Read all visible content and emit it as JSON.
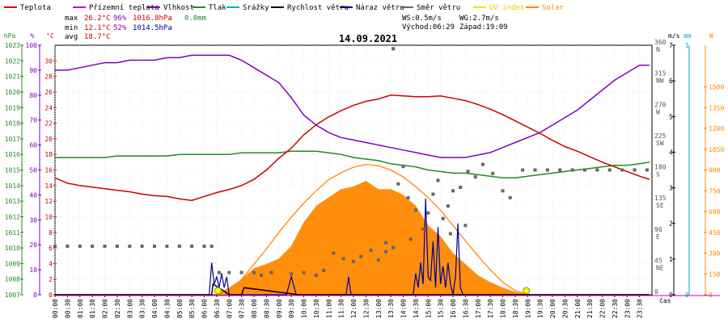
{
  "chart_data": {
    "type": "line",
    "title": "14.09.2021",
    "x": [
      "00:00",
      "00:30",
      "01:00",
      "01:30",
      "02:00",
      "02:30",
      "03:00",
      "03:30",
      "04:00",
      "04:30",
      "05:00",
      "05:30",
      "06:00",
      "06:30",
      "07:00",
      "07:30",
      "08:00",
      "08:30",
      "09:00",
      "09:30",
      "10:00",
      "10:30",
      "11:00",
      "11:30",
      "12:00",
      "12:30",
      "13:00",
      "13:30",
      "14:00",
      "14:30",
      "15:00",
      "15:30",
      "16:00",
      "16:30",
      "17:00",
      "17:30",
      "18:00",
      "18:30",
      "19:00",
      "19:30",
      "20:00",
      "20:30",
      "21:00",
      "21:30",
      "22:00",
      "22:30",
      "23:00",
      "23:30"
    ],
    "xlabel": "čas",
    "legend": [
      {
        "name": "Teplota",
        "color": "#cc0000"
      },
      {
        "name": "Přízemní teplota",
        "color": "#cc00cc"
      },
      {
        "name": "Vlhkost",
        "color": "#8000c0"
      },
      {
        "name": "Tlak",
        "color": "#228b22"
      },
      {
        "name": "Srážky",
        "color": "#00aacc"
      },
      {
        "name": "Rychlost větru",
        "color": "#000000"
      },
      {
        "name": "Náraz větru",
        "color": "#000099"
      },
      {
        "name": "Směr větru",
        "color": "#666666"
      },
      {
        "name": "UV index",
        "color": "#e8e800"
      },
      {
        "name": "Solar",
        "color": "#ff8800"
      }
    ],
    "stats": {
      "max_label": "max",
      "max_temp": "26.2°C",
      "max_hum": "96%",
      "max_press": "1016.8hPa",
      "max_rain": "0.0mm",
      "min_label": "min",
      "min_temp": "12.1°C",
      "min_hum": "52%",
      "min_press": "1014.5hPa",
      "avg_label": "avg",
      "avg_temp": "18.7°C",
      "ws": "WS:0.5m/s",
      "wg": "WG:2.7m/s",
      "sunrise": "Východ:06:29",
      "sunset": "Západ:19:09"
    },
    "axes": {
      "pressure": {
        "unit": "hPa",
        "color": "#228b22",
        "range": [
          1007,
          1023
        ],
        "ticks": [
          1007,
          1008,
          1009,
          1010,
          1011,
          1012,
          1013,
          1014,
          1015,
          1016,
          1017,
          1018,
          1019,
          1020,
          1021,
          1022,
          1023
        ]
      },
      "humidity": {
        "unit": "%",
        "color": "#8000c0",
        "range": [
          0,
          100
        ],
        "ticks": [
          0,
          10,
          20,
          30,
          40,
          50,
          60,
          70,
          80,
          90,
          100
        ]
      },
      "temperature": {
        "unit": "°C",
        "color": "#cc0000",
        "range": [
          0,
          32
        ],
        "ticks": [
          0,
          2,
          4,
          6,
          8,
          10,
          12,
          14,
          16,
          18,
          20,
          22,
          24,
          26,
          28,
          30
        ]
      },
      "direction": {
        "unit": "",
        "color": "#555555",
        "range": [
          0,
          360
        ],
        "ticks": [
          {
            "v": 0,
            "l": "0"
          },
          {
            "v": 45,
            "l": "45",
            "d": "NE"
          },
          {
            "v": 90,
            "l": "90",
            "d": "E"
          },
          {
            "v": 135,
            "l": "135",
            "d": "SE"
          },
          {
            "v": 180,
            "l": "180",
            "d": "S"
          },
          {
            "v": 225,
            "l": "225",
            "d": "SW"
          },
          {
            "v": 270,
            "l": "270",
            "d": "W"
          },
          {
            "v": 315,
            "l": "315",
            "d": "NW"
          },
          {
            "v": 360,
            "l": "360",
            "d": "N"
          }
        ]
      },
      "wind": {
        "unit": "m/s",
        "color": "#000000",
        "range": [
          0,
          7
        ],
        "ticks": [
          0,
          1,
          2,
          3,
          4,
          5,
          6,
          7
        ]
      },
      "rain": {
        "unit": "mm",
        "color": "#00aacc",
        "range": [
          0,
          1
        ],
        "ticks": [
          0,
          1
        ]
      },
      "solar": {
        "unit": "W",
        "color": "#ff8800",
        "range": [
          0,
          1800
        ],
        "ticks": [
          0,
          150,
          300,
          450,
          600,
          750,
          900,
          1050,
          1200,
          1350,
          1500
        ]
      }
    },
    "series": [
      {
        "name": "Teplota",
        "axis": "temperature",
        "color": "#cc0000",
        "x": [
          0,
          0.5,
          1,
          1.5,
          2,
          2.5,
          3,
          3.5,
          4,
          4.5,
          5,
          5.5,
          6,
          6.5,
          7,
          7.5,
          8,
          8.5,
          9,
          9.5,
          10,
          10.5,
          11,
          11.5,
          12,
          12.5,
          13,
          13.5,
          14,
          14.5,
          15,
          15.5,
          16,
          16.5,
          17,
          17.5,
          18,
          18.5,
          19,
          19.5,
          20,
          20.5,
          21,
          21.5,
          22,
          22.5,
          23,
          23.5,
          23.9
        ],
        "values": [
          15.0,
          14.3,
          14.0,
          13.8,
          13.6,
          13.4,
          13.2,
          12.9,
          12.7,
          12.6,
          12.3,
          12.1,
          12.6,
          13.1,
          13.5,
          14.0,
          14.8,
          16.0,
          17.5,
          18.8,
          20.5,
          21.8,
          22.8,
          23.6,
          24.3,
          24.8,
          25.1,
          25.6,
          25.5,
          25.4,
          25.4,
          25.5,
          25.2,
          24.9,
          24.4,
          23.8,
          23.1,
          22.3,
          21.5,
          20.7,
          19.8,
          19.0,
          18.4,
          17.7,
          17.0,
          16.4,
          15.8,
          15.2,
          14.8
        ]
      },
      {
        "name": "Vlhkost",
        "axis": "humidity",
        "color": "#8000c0",
        "x": [
          0,
          0.5,
          1,
          1.5,
          2,
          2.5,
          3,
          3.5,
          4,
          4.5,
          5,
          5.5,
          6,
          6.5,
          7,
          7.5,
          8,
          8.5,
          9,
          9.5,
          10,
          10.5,
          11,
          11.5,
          12,
          12.5,
          13,
          13.5,
          14,
          14.5,
          15,
          15.5,
          16,
          16.5,
          17,
          17.5,
          18,
          18.5,
          19,
          19.5,
          20,
          20.5,
          21,
          21.5,
          22,
          22.5,
          23,
          23.5,
          23.9
        ],
        "values": [
          90,
          90,
          91,
          92,
          93,
          93,
          94,
          94,
          94,
          95,
          95,
          96,
          96,
          96,
          96,
          94,
          91,
          88,
          85,
          79,
          72,
          68,
          65,
          63,
          62,
          61,
          60,
          59,
          58,
          57,
          56,
          55,
          55,
          55,
          56,
          57,
          59,
          61,
          63,
          65,
          68,
          71,
          74,
          78,
          82,
          86,
          89,
          92,
          92
        ]
      },
      {
        "name": "Tlak",
        "axis": "pressure",
        "color": "#228b22",
        "x": [
          0,
          0.5,
          1,
          1.5,
          2,
          2.5,
          3,
          3.5,
          4,
          4.5,
          5,
          5.5,
          6,
          6.5,
          7,
          7.5,
          8,
          8.5,
          9,
          9.5,
          10,
          10.5,
          11,
          11.5,
          12,
          12.5,
          13,
          13.5,
          14,
          14.5,
          15,
          15.5,
          16,
          16.5,
          17,
          17.5,
          18,
          18.5,
          19,
          19.5,
          20,
          20.5,
          21,
          21.5,
          22,
          22.5,
          23,
          23.5,
          23.9
        ],
        "values": [
          1015.8,
          1015.8,
          1015.8,
          1015.8,
          1015.8,
          1015.9,
          1015.9,
          1015.9,
          1015.9,
          1015.9,
          1016.0,
          1016.0,
          1016.0,
          1016.0,
          1016.0,
          1016.1,
          1016.1,
          1016.1,
          1016.1,
          1016.2,
          1016.2,
          1016.2,
          1016.1,
          1016.0,
          1015.8,
          1015.7,
          1015.6,
          1015.4,
          1015.3,
          1015.2,
          1015.0,
          1014.9,
          1014.8,
          1014.8,
          1014.7,
          1014.6,
          1014.5,
          1014.5,
          1014.6,
          1014.7,
          1014.8,
          1014.9,
          1015.0,
          1015.1,
          1015.2,
          1015.3,
          1015.3,
          1015.4,
          1015.5
        ]
      },
      {
        "name": "Rychlost větru",
        "axis": "wind",
        "color": "#000000",
        "x": [
          0,
          6.3,
          6.35,
          6.8,
          7,
          7.5,
          7.6,
          9.8,
          23.9
        ],
        "values": [
          0,
          0,
          0.3,
          0.1,
          0,
          0,
          0.2,
          0,
          0
        ]
      },
      {
        "name": "Náraz větru",
        "axis": "wind",
        "color": "#000099",
        "x": [
          0,
          6.2,
          6.3,
          6.4,
          6.5,
          6.6,
          6.7,
          6.8,
          6.9,
          7.0,
          9.3,
          9.5,
          9.7,
          11.7,
          11.8,
          11.9,
          14.4,
          14.5,
          14.6,
          14.7,
          14.8,
          14.9,
          15.0,
          15.1,
          15.2,
          15.3,
          15.4,
          15.5,
          15.6,
          15.7,
          15.8,
          15.9,
          16.0,
          16.1,
          16.2,
          16.3,
          16.4,
          23.9
        ],
        "values": [
          0,
          0,
          0.9,
          0.3,
          0.5,
          0.2,
          0.6,
          0.2,
          0.5,
          0,
          0,
          0.5,
          0,
          0,
          0.5,
          0,
          0,
          0.6,
          0.2,
          0.9,
          0.3,
          2.7,
          0.5,
          0.4,
          1.5,
          0.2,
          1.9,
          0.3,
          0.8,
          0.2,
          0.9,
          0.3,
          0,
          0.5,
          2.0,
          0.2,
          0,
          0
        ]
      },
      {
        "name": "Směr větru",
        "axis": "direction",
        "color": "#666666",
        "points": [
          [
            0,
            70
          ],
          [
            0.5,
            70
          ],
          [
            1,
            70
          ],
          [
            1.5,
            70
          ],
          [
            2,
            70
          ],
          [
            2.5,
            70
          ],
          [
            3,
            70
          ],
          [
            3.5,
            70
          ],
          [
            4,
            70
          ],
          [
            4.5,
            70
          ],
          [
            5,
            70
          ],
          [
            5.5,
            70
          ],
          [
            6,
            70
          ],
          [
            6.3,
            70
          ],
          [
            6.6,
            32
          ],
          [
            7,
            32
          ],
          [
            7.5,
            32
          ],
          [
            8,
            32
          ],
          [
            8.3,
            28
          ],
          [
            8.7,
            32
          ],
          [
            9.5,
            30
          ],
          [
            10,
            32
          ],
          [
            10.5,
            28
          ],
          [
            10.8,
            35
          ],
          [
            11.2,
            60
          ],
          [
            11.6,
            52
          ],
          [
            12,
            48
          ],
          [
            12.3,
            55
          ],
          [
            12.7,
            64
          ],
          [
            13,
            50
          ],
          [
            13.3,
            62
          ],
          [
            13.6,
            68
          ],
          [
            13.8,
            160
          ],
          [
            14,
            185
          ],
          [
            14.2,
            140
          ],
          [
            14.5,
            122
          ],
          [
            14.8,
            95
          ],
          [
            15,
            118
          ],
          [
            15.2,
            145
          ],
          [
            15.4,
            165
          ],
          [
            15.6,
            110
          ],
          [
            15.8,
            128
          ],
          [
            16,
            150
          ],
          [
            16.3,
            155
          ],
          [
            16.6,
            178
          ],
          [
            16.9,
            170
          ],
          [
            17.2,
            188
          ],
          [
            17.6,
            175
          ],
          [
            18,
            150
          ],
          [
            18.3,
            140
          ],
          [
            13.6,
            355
          ],
          [
            14.3,
            80
          ],
          [
            13.3,
            75
          ],
          [
            15.9,
            88
          ],
          [
            16.5,
            100
          ],
          [
            18.8,
            180
          ],
          [
            19.3,
            180
          ],
          [
            19.8,
            180
          ],
          [
            20.3,
            180
          ],
          [
            20.8,
            180
          ],
          [
            21.3,
            180
          ],
          [
            21.8,
            180
          ],
          [
            22.3,
            180
          ],
          [
            22.8,
            180
          ],
          [
            23.3,
            180
          ],
          [
            23.8,
            180
          ]
        ]
      },
      {
        "name": "Solar",
        "axis": "solar",
        "color": "#ff8800",
        "x": [
          6.5,
          7,
          7.5,
          8,
          8.5,
          9,
          9.5,
          10,
          10.5,
          11,
          11.5,
          12,
          12.5,
          13,
          13.5,
          14,
          14.5,
          15,
          15.5,
          16,
          16.5,
          17,
          17.5,
          18,
          18.5,
          19
        ],
        "values": [
          0,
          50,
          110,
          190,
          220,
          260,
          350,
          520,
          640,
          700,
          760,
          780,
          820,
          760,
          760,
          720,
          640,
          500,
          420,
          300,
          220,
          140,
          90,
          50,
          20,
          0
        ]
      },
      {
        "name": "Solar max",
        "axis": "solar",
        "color": "#ff8800",
        "x": [
          6.5,
          7,
          7.5,
          8,
          8.5,
          9,
          9.5,
          10,
          10.5,
          11,
          11.5,
          12,
          12.5,
          13,
          13.5,
          14,
          14.5,
          15,
          15.5,
          16,
          16.5,
          17,
          17.5,
          18,
          18.5,
          19
        ],
        "values": [
          0,
          40,
          110,
          220,
          330,
          450,
          560,
          660,
          750,
          830,
          880,
          920,
          940,
          930,
          900,
          850,
          780,
          700,
          610,
          500,
          390,
          280,
          180,
          90,
          30,
          0
        ]
      },
      {
        "name": "UV index",
        "axis": "solar",
        "color": "#e8e800",
        "points": [
          [
            6.55,
            0
          ],
          [
            18.95,
            0
          ]
        ]
      }
    ]
  }
}
